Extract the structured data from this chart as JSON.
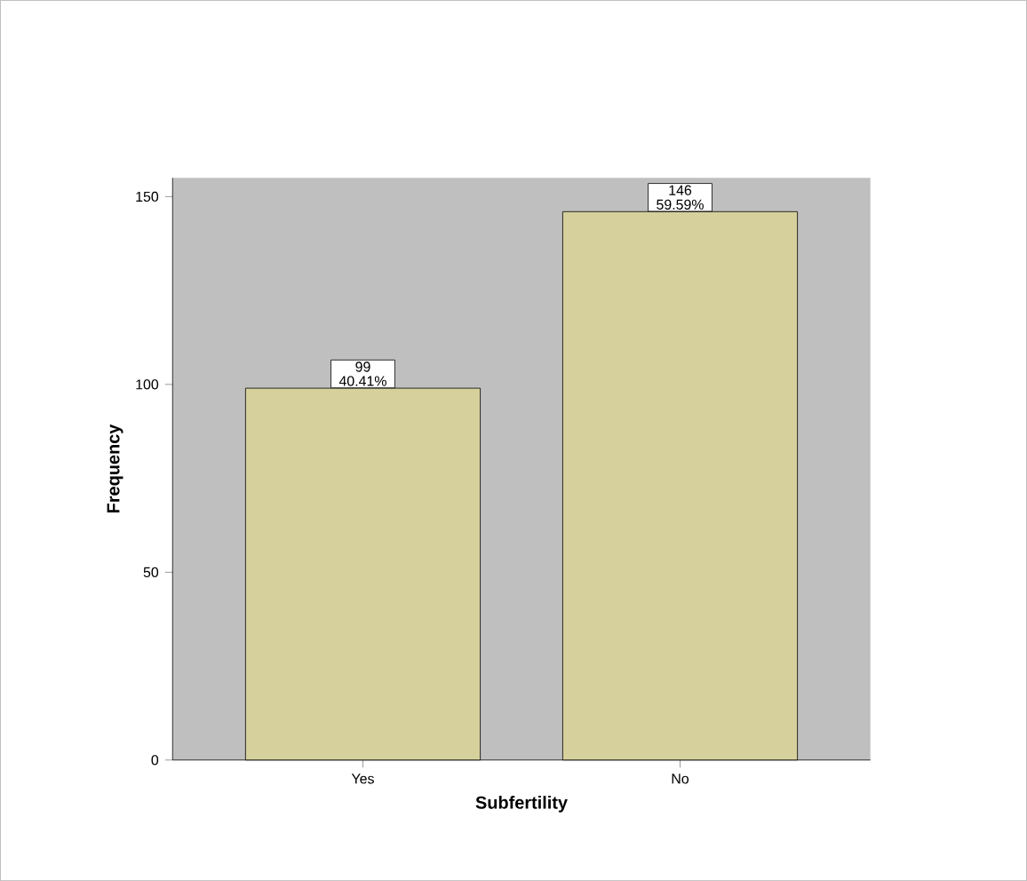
{
  "chart_data": {
    "type": "bar",
    "xlabel": "Subfertility",
    "ylabel": "Frequency",
    "categories": [
      "Yes",
      "No"
    ],
    "values": [
      99,
      146
    ],
    "color": "#d6d19c",
    "ylim": [
      0,
      155
    ],
    "yticks": [
      0,
      50,
      100,
      150
    ],
    "value_labels": [
      "99 40.41%",
      "146 59.59%"
    ]
  }
}
